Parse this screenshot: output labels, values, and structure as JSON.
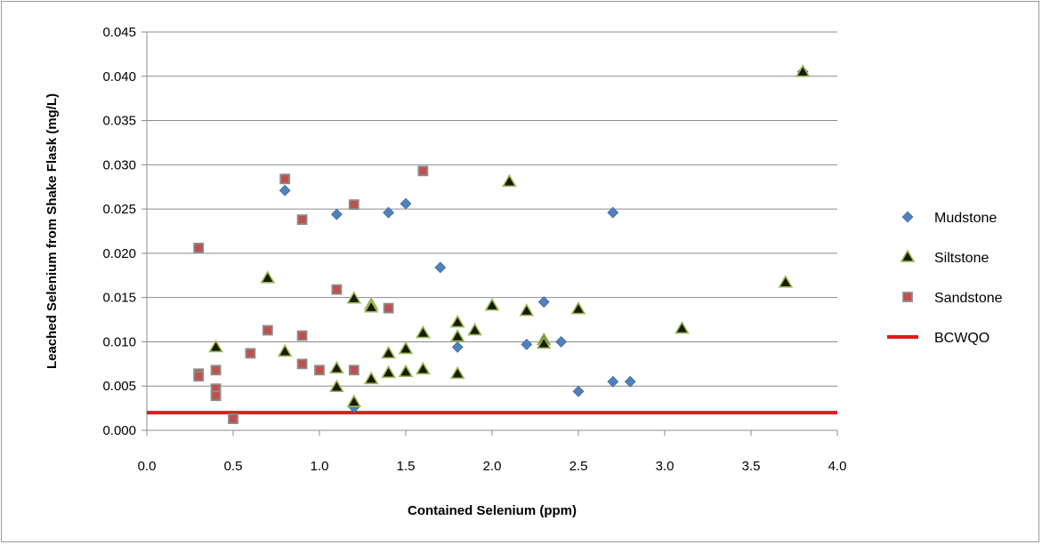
{
  "chart_data": {
    "type": "scatter",
    "xlabel": "Contained Selenium (ppm)",
    "ylabel": "Leached Selenium from Shake Flask (mg/L)",
    "xlim": [
      0.0,
      4.0
    ],
    "ylim": [
      0.0,
      0.045
    ],
    "x_ticks": [
      "0.0",
      "0.5",
      "1.0",
      "1.5",
      "2.0",
      "2.5",
      "3.0",
      "3.5",
      "4.0"
    ],
    "y_ticks": [
      "0.000",
      "0.005",
      "0.010",
      "0.015",
      "0.020",
      "0.025",
      "0.030",
      "0.035",
      "0.040",
      "0.045"
    ],
    "grid": "horizontal",
    "legend_position": "right",
    "series": [
      {
        "name": "Mudstone",
        "marker": "diamond",
        "color": "#4f81bd",
        "points": [
          [
            0.8,
            0.0271
          ],
          [
            1.1,
            0.0244
          ],
          [
            1.4,
            0.0246
          ],
          [
            1.5,
            0.0256
          ],
          [
            1.7,
            0.0184
          ],
          [
            1.8,
            0.0094
          ],
          [
            2.2,
            0.0097
          ],
          [
            2.3,
            0.0145
          ],
          [
            2.4,
            0.01
          ],
          [
            2.5,
            0.0044
          ],
          [
            2.7,
            0.0246
          ],
          [
            2.7,
            0.0055
          ],
          [
            2.8,
            0.0055
          ],
          [
            1.2,
            0.0026
          ],
          [
            3.8,
            0.0405
          ]
        ]
      },
      {
        "name": "Siltstone",
        "marker": "triangle",
        "color": "#1a1a00",
        "edge": "#9bbb59",
        "points": [
          [
            0.4,
            0.0094
          ],
          [
            0.7,
            0.0172
          ],
          [
            0.8,
            0.0089
          ],
          [
            1.1,
            0.007
          ],
          [
            1.1,
            0.0049
          ],
          [
            1.2,
            0.0149
          ],
          [
            1.2,
            0.0032
          ],
          [
            1.3,
            0.0142
          ],
          [
            1.3,
            0.0139
          ],
          [
            1.3,
            0.0058
          ],
          [
            1.4,
            0.0087
          ],
          [
            1.4,
            0.0065
          ],
          [
            1.5,
            0.0092
          ],
          [
            1.5,
            0.0066
          ],
          [
            1.6,
            0.011
          ],
          [
            1.6,
            0.0069
          ],
          [
            1.8,
            0.0122
          ],
          [
            1.8,
            0.0106
          ],
          [
            1.8,
            0.0064
          ],
          [
            1.9,
            0.0113
          ],
          [
            2.0,
            0.0141
          ],
          [
            2.1,
            0.0281
          ],
          [
            2.2,
            0.0135
          ],
          [
            2.3,
            0.0102
          ],
          [
            2.3,
            0.0098
          ],
          [
            2.5,
            0.0137
          ],
          [
            3.1,
            0.0115
          ],
          [
            3.7,
            0.0167
          ],
          [
            3.8,
            0.0405
          ]
        ]
      },
      {
        "name": "Sandstone",
        "marker": "square",
        "color": "#c0504d",
        "edge": "#8c8c8c",
        "points": [
          [
            0.3,
            0.0206
          ],
          [
            0.3,
            0.0064
          ],
          [
            0.3,
            0.0061
          ],
          [
            0.4,
            0.0068
          ],
          [
            0.4,
            0.0047
          ],
          [
            0.4,
            0.0039
          ],
          [
            0.5,
            0.0013
          ],
          [
            0.6,
            0.0087
          ],
          [
            0.7,
            0.0113
          ],
          [
            0.8,
            0.0284
          ],
          [
            0.9,
            0.0238
          ],
          [
            0.9,
            0.0107
          ],
          [
            0.9,
            0.0075
          ],
          [
            1.0,
            0.0068
          ],
          [
            1.1,
            0.0159
          ],
          [
            1.2,
            0.0255
          ],
          [
            1.2,
            0.0068
          ],
          [
            1.4,
            0.0138
          ],
          [
            1.6,
            0.0293
          ]
        ]
      },
      {
        "name": "BCWQO",
        "marker": "line",
        "color": "#e31a1c",
        "y": 0.002
      }
    ]
  }
}
